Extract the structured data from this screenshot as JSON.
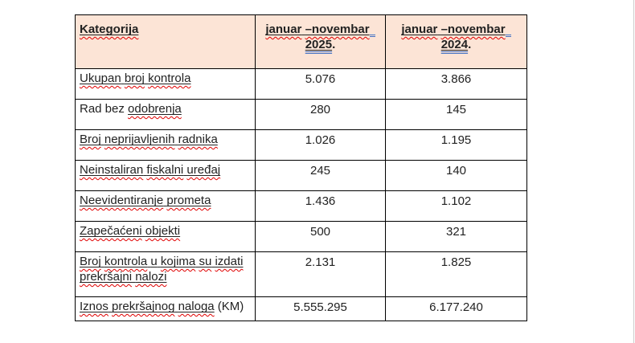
{
  "colors": {
    "header_bg": "#fce4d6",
    "border": "#000000",
    "text": "#222222",
    "spell_red": "#e00000",
    "grammar_blue": "#4472c4",
    "edge_line": "#cccccc"
  },
  "table": {
    "header": {
      "category": [
        {
          "t": "Kategorija",
          "s": "usp"
        }
      ],
      "col2025": [
        {
          "t": "januar",
          "s": "usp"
        },
        {
          "t": " ",
          "s": "u"
        },
        {
          "t": "–novembar",
          "s": "usp"
        },
        {
          "t": "",
          "s": "blm"
        },
        {
          "t": "",
          "s": "br"
        },
        {
          "t": "2025",
          "s": "ubl"
        },
        {
          "t": ".",
          "s": "p"
        }
      ],
      "col2024": [
        {
          "t": "januar",
          "s": "usp"
        },
        {
          "t": " ",
          "s": "u"
        },
        {
          "t": "–novembar",
          "s": "usp"
        },
        {
          "t": "",
          "s": "blm"
        },
        {
          "t": "",
          "s": "br"
        },
        {
          "t": "2024",
          "s": "ubl"
        },
        {
          "t": ".",
          "s": "p"
        }
      ]
    },
    "rows": [
      {
        "label": [
          {
            "t": "Ukupan",
            "s": "usp"
          },
          {
            "t": " ",
            "s": "u"
          },
          {
            "t": "broj",
            "s": "usp"
          },
          {
            "t": " ",
            "s": "u"
          },
          {
            "t": "kontrola",
            "s": "usp"
          }
        ],
        "v2025": "5.076",
        "v2024": "3.866"
      },
      {
        "label": [
          {
            "t": "Rad bez ",
            "s": "p"
          },
          {
            "t": "odobrenja",
            "s": "usp"
          }
        ],
        "v2025": "280",
        "v2024": "145"
      },
      {
        "label": [
          {
            "t": "Broj",
            "s": "usp"
          },
          {
            "t": " ",
            "s": "u"
          },
          {
            "t": "neprijavljenih",
            "s": "usp"
          },
          {
            "t": " ",
            "s": "u"
          },
          {
            "t": "radnika",
            "s": "usp"
          }
        ],
        "v2025": "1.026",
        "v2024": "1.195"
      },
      {
        "label": [
          {
            "t": "Neinstaliran",
            "s": "usp"
          },
          {
            "t": " ",
            "s": "u"
          },
          {
            "t": "fiskalni",
            "s": "usp"
          },
          {
            "t": " ",
            "s": "u"
          },
          {
            "t": "uređaj",
            "s": "usp"
          }
        ],
        "v2025": "245",
        "v2024": "140"
      },
      {
        "label": [
          {
            "t": "Neevidentiranje",
            "s": "usp"
          },
          {
            "t": " ",
            "s": "u"
          },
          {
            "t": "prometa",
            "s": "usp"
          }
        ],
        "v2025": "1.436",
        "v2024": "1.102"
      },
      {
        "label": [
          {
            "t": "Zapečaćeni",
            "s": "usp"
          },
          {
            "t": " ",
            "s": "u"
          },
          {
            "t": "objekti",
            "s": "usp"
          }
        ],
        "v2025": "500",
        "v2024": "321"
      },
      {
        "label": [
          {
            "t": "Broj",
            "s": "usp"
          },
          {
            "t": " ",
            "s": "u"
          },
          {
            "t": "kontrola",
            "s": "usp"
          },
          {
            "t": " ",
            "s": "u"
          },
          {
            "t": "u",
            "s": "u"
          },
          {
            "t": " ",
            "s": "u"
          },
          {
            "t": "kojima",
            "s": "usp"
          },
          {
            "t": " ",
            "s": "u"
          },
          {
            "t": "su",
            "s": "usp"
          },
          {
            "t": " ",
            "s": "u"
          },
          {
            "t": "izdati",
            "s": "usp"
          },
          {
            "t": " ",
            "s": "u"
          },
          {
            "t": "prekršajni",
            "s": "usp"
          },
          {
            "t": " ",
            "s": "u"
          },
          {
            "t": "nalozi",
            "s": "usp"
          }
        ],
        "v2025": "2.131",
        "v2024": "1.825"
      },
      {
        "label": [
          {
            "t": "Iznos",
            "s": "usp"
          },
          {
            "t": " ",
            "s": "u"
          },
          {
            "t": "prekršajnog",
            "s": "usp"
          },
          {
            "t": " ",
            "s": "u"
          },
          {
            "t": "naloga",
            "s": "usp"
          },
          {
            "t": " (KM)",
            "s": "p"
          }
        ],
        "v2025": "5.555.295",
        "v2024": "6.177.240"
      }
    ]
  }
}
